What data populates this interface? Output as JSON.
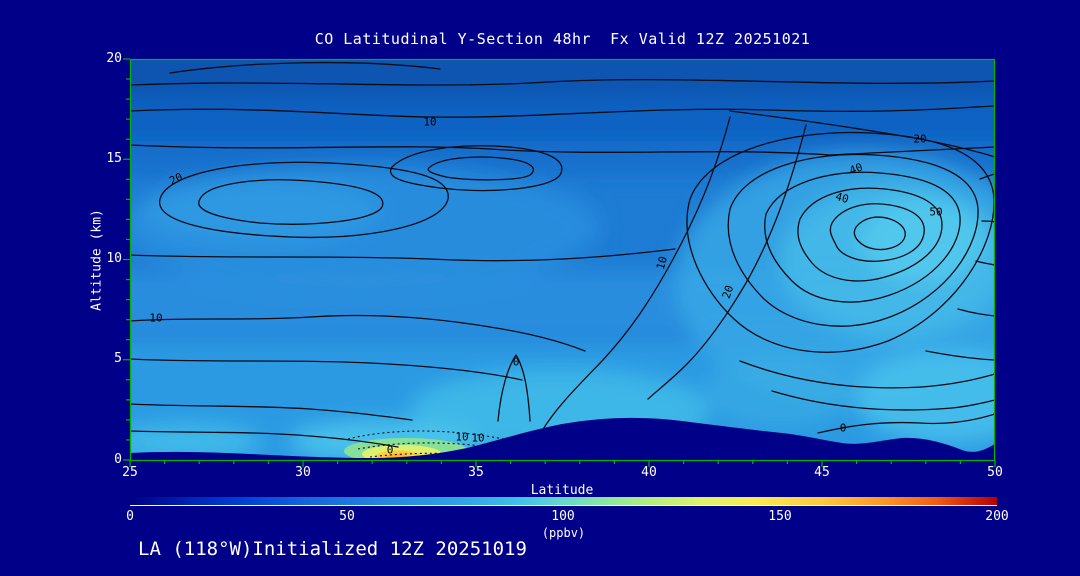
{
  "title": "CO Latitudinal Y-Section 48hr  Fx Valid 12Z 20251021",
  "footer": "LA (118°W)Initialized 12Z 20251019",
  "axes": {
    "x_label": "Latitude",
    "y_label": "Altitude (km)",
    "x_ticks": [
      "25",
      "30",
      "35",
      "40",
      "45",
      "50"
    ],
    "y_ticks": [
      "20",
      "15",
      "10",
      "5",
      "0"
    ]
  },
  "colorbar": {
    "tick_labels": [
      "0",
      "50",
      "100",
      "150",
      "200"
    ],
    "units_label": "(ppbv)",
    "min": 0,
    "max": 200,
    "gradient_stops": [
      "#000085",
      "#0040d8",
      "#1668dc",
      "#2a90e2",
      "#3fc2ea",
      "#8ce6a0",
      "#b4ee7e",
      "#f8ea52",
      "#ffc83e",
      "#ff9426",
      "#f45c12",
      "#b40000"
    ]
  },
  "contour_labels": [
    "10",
    "20",
    "20",
    "40",
    "40",
    "50",
    "10",
    "10",
    "20",
    "0",
    "0",
    "10",
    "10",
    "0"
  ],
  "colors": {
    "background": "#000089",
    "base_fill": "#1e7cd4",
    "contour_line": "#0b0b16",
    "tick_mark": "#00b400",
    "text": "#ffffff",
    "terrain": "#000089"
  },
  "chart_data": {
    "type": "heatmap",
    "chart_kind": "filled-contour latitude-altitude cross section with line contours",
    "variable": "CO",
    "units": "ppbv",
    "title": "CO Latitudinal Y-Section 48hr  Fx Valid 12Z 20251021",
    "xlabel": "Latitude",
    "ylabel": "Altitude (km)",
    "xlim": [
      25,
      50
    ],
    "ylim": [
      0,
      20
    ],
    "forecast": {
      "forecast_hour": 48,
      "valid": "12Z 20251021",
      "initialized": "12Z 20251019",
      "section_location": "LA (118°W)"
    },
    "fill_scale": {
      "min": 0,
      "max": 200,
      "ticks": [
        0,
        50,
        100,
        150,
        200
      ],
      "units": "ppbv"
    },
    "line_contour_levels_visible": [
      0,
      10,
      20,
      40,
      50
    ],
    "sample_grid": {
      "latitudes": [
        25,
        30,
        35,
        40,
        45,
        50
      ],
      "altitudes_km": [
        0,
        5,
        10,
        15,
        20
      ],
      "co_ppbv_estimate_rows_by_altitude": [
        [
          70,
          90,
          75,
          70,
          80,
          85
        ],
        [
          65,
          68,
          72,
          75,
          85,
          90
        ],
        [
          62,
          60,
          62,
          68,
          82,
          88
        ],
        [
          60,
          62,
          58,
          60,
          68,
          72
        ],
        [
          38,
          40,
          40,
          40,
          45,
          45
        ]
      ]
    },
    "features": {
      "surface_max": {
        "lat": 32.5,
        "alt_km": 0.3,
        "value_ppbv": 150
      },
      "closed_line_contour_max_upper_right": {
        "lat": 47,
        "alt_km": 13,
        "labeled_level": 50
      },
      "closed_line_contour_left": {
        "lat": 28,
        "alt_km": 13,
        "labeled_level": 20
      },
      "terrain_ridge": {
        "lat_range": [
          36,
          41
        ],
        "max_alt_km": 2.1
      },
      "grid_on": false,
      "legend": "horizontal colorbar bottom"
    }
  }
}
